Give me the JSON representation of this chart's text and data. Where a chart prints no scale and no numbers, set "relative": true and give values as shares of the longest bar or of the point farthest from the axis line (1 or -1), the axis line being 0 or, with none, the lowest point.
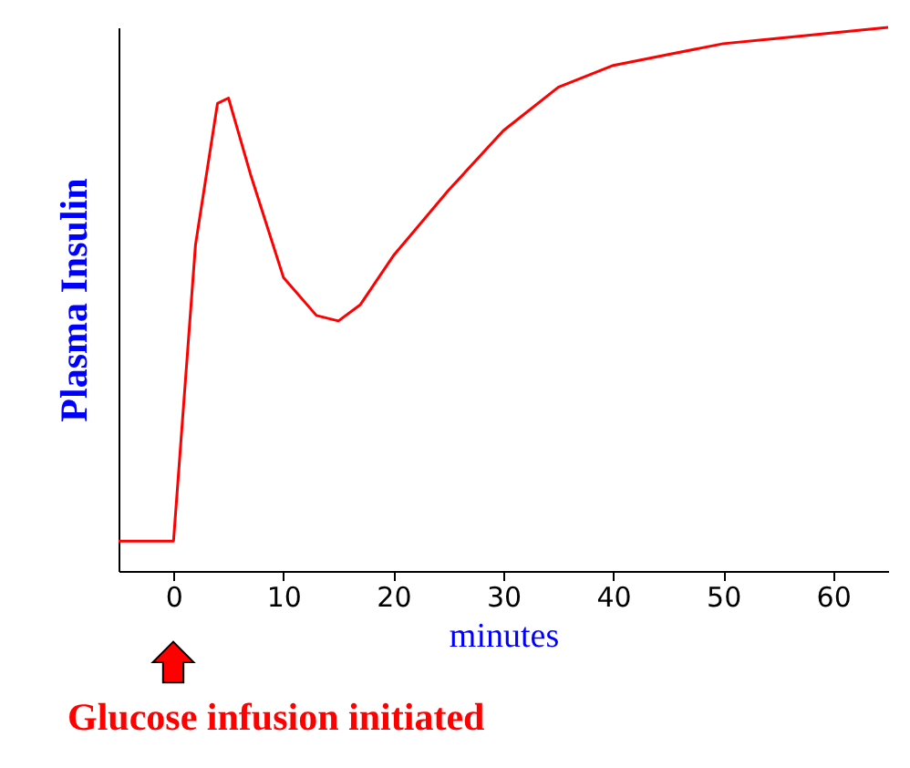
{
  "chart_data": {
    "type": "line",
    "relative": true,
    "xlabel": "minutes",
    "ylabel": "Plasma Insulin",
    "x": [
      -5,
      0,
      2,
      4,
      5,
      7,
      10,
      13,
      15,
      17,
      20,
      25,
      30,
      35,
      40,
      45,
      50,
      55,
      60,
      65
    ],
    "series": [
      {
        "color": "#ff0000",
        "values": [
          0.055,
          0.055,
          0.6,
          0.86,
          0.87,
          0.73,
          0.54,
          0.47,
          0.46,
          0.49,
          0.58,
          0.7,
          0.81,
          0.89,
          0.93,
          0.95,
          0.97,
          0.98,
          0.99,
          1.0
        ]
      }
    ],
    "xlim": [
      -5,
      65
    ],
    "xticks": [
      0,
      10,
      20,
      30,
      40,
      50,
      60
    ],
    "grid": false,
    "marker": "none",
    "annotations": [
      "Glucose infusion initiated"
    ]
  }
}
